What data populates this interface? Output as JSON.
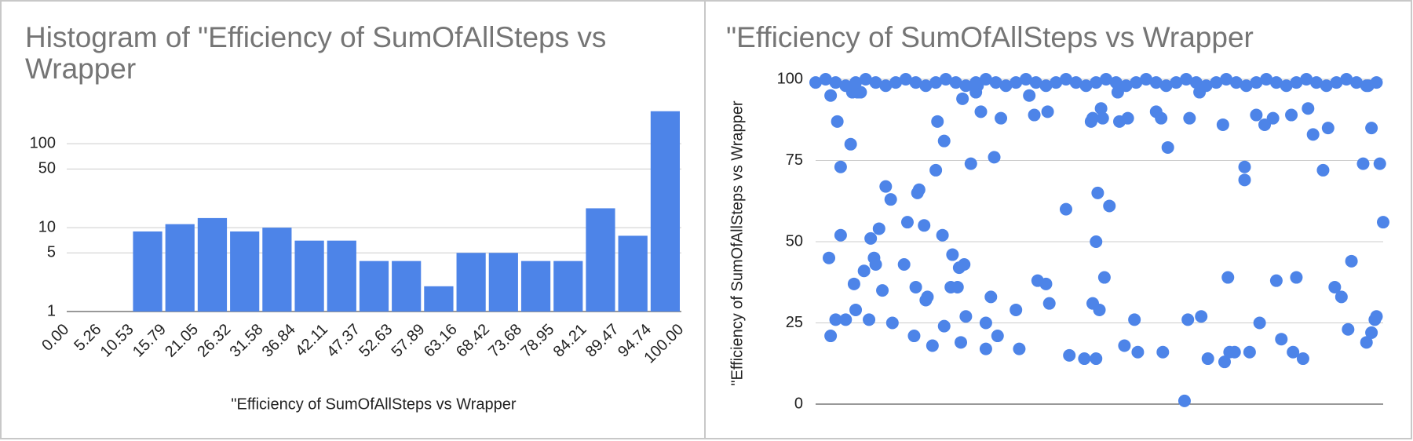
{
  "chart_data": [
    {
      "type": "histogram",
      "title": "Histogram of \"Efficiency of SumOfAllSteps vs Wrapper",
      "x_label": "\"Efficiency of SumOfAllSteps vs Wrapper",
      "bins": [
        {
          "value": 0,
          "label": "0.00"
        },
        5.26,
        10.53,
        15.79,
        21.05,
        26.32,
        31.58,
        36.84,
        42.11,
        47.37,
        52.63,
        57.89,
        63.16,
        68.42,
        73.68,
        78.95,
        84.21,
        89.47,
        94.74,
        {
          "value": 100,
          "label": "100.00"
        }
      ],
      "counts": [
        0,
        0,
        9,
        11,
        13,
        9,
        10,
        7,
        7,
        4,
        4,
        2,
        5,
        5,
        4,
        4,
        17,
        8,
        244
      ],
      "color": "#4d84e8",
      "xlim": [
        0,
        100
      ],
      "ylim": [
        1,
        350
      ],
      "yticks": [
        1,
        5,
        10,
        50,
        100
      ],
      "log_y": true,
      "grid": true
    },
    {
      "type": "scatter",
      "title": "\"Efficiency of SumOfAllSteps vs Wrapper",
      "y_label": "\"Efficiency of SumOfAllSteps vs Wrapper",
      "x": [
        8,
        9,
        9,
        12,
        13,
        15,
        15,
        18,
        21,
        22,
        23,
        24,
        25,
        27,
        29,
        32,
        33,
        35,
        36,
        38,
        40,
        42,
        45,
        46,
        53,
        55,
        59,
        60,
        61,
        62,
        65,
        66,
        67,
        70,
        72,
        73,
        76,
        77,
        77,
        81,
        82,
        85,
        86,
        87,
        88,
        89,
        90,
        93,
        96,
        97,
        99,
        102,
        102,
        105,
        107,
        109,
        111,
        120,
        122,
        128,
        131,
        133,
        138,
        139,
        140,
        150,
        152,
        161,
        165,
        166,
        166,
        168,
        168,
        169,
        170,
        171,
        172,
        173,
        176,
        181,
        182,
        185,
        187,
        191,
        193,
        204,
        207,
        208,
        211,
        221,
        223,
        224,
        230,
        231,
        235,
        244,
        245,
        247,
        248,
        251,
        257,
        257,
        260,
        264,
        266,
        269,
        274,
        276,
        279,
        285,
        286,
        288,
        292,
        295,
        298,
        304,
        307,
        311,
        315,
        319,
        321,
        328,
        330,
        331,
        333,
        333,
        335,
        336,
        338,
        340,
        0,
        6,
        12,
        18,
        24,
        30,
        36,
        42,
        48,
        54,
        60,
        66,
        72,
        78,
        84,
        90,
        96,
        102,
        108,
        114,
        120,
        126,
        132,
        138,
        144,
        150,
        156,
        162,
        168,
        174,
        180,
        186,
        192,
        198,
        204,
        210,
        216,
        222,
        228,
        234,
        240,
        246,
        252,
        258,
        264,
        270,
        276,
        282,
        288,
        294,
        300,
        306,
        312,
        318,
        324,
        330,
        336
      ],
      "values": [
        45,
        21,
        95,
        26,
        87,
        52,
        73,
        26,
        80,
        96,
        37,
        29,
        96,
        96,
        41,
        26,
        51,
        45,
        43,
        54,
        35,
        67,
        63,
        25,
        43,
        56,
        21,
        36,
        65,
        66,
        55,
        32,
        33,
        18,
        72,
        87,
        52,
        81,
        24,
        36,
        46,
        36,
        42,
        19,
        94,
        43,
        27,
        74,
        96,
        98,
        90,
        25,
        17,
        33,
        76,
        21,
        88,
        29,
        17,
        95,
        89,
        38,
        37,
        90,
        31,
        60,
        15,
        14,
        87,
        88,
        31,
        14,
        50,
        65,
        29,
        91,
        88,
        39,
        61,
        96,
        87,
        18,
        88,
        26,
        16,
        90,
        88,
        16,
        79,
        1,
        26,
        88,
        96,
        27,
        14,
        86,
        13,
        39,
        16,
        16,
        73,
        69,
        16,
        89,
        25,
        86,
        88,
        38,
        20,
        89,
        16,
        39,
        14,
        91,
        83,
        72,
        85,
        36,
        33,
        23,
        44,
        74,
        19,
        98,
        85,
        22,
        26,
        27,
        74,
        56,
        99,
        100,
        99,
        98,
        99,
        100,
        99,
        98,
        99,
        100,
        99,
        98,
        99,
        100,
        99,
        98,
        99,
        100,
        99,
        98,
        99,
        100,
        99,
        98,
        99,
        100,
        99,
        98,
        99,
        100,
        99,
        98,
        99,
        100,
        99,
        98,
        99,
        100,
        99,
        98,
        99,
        100,
        99,
        98,
        99,
        100,
        99,
        98,
        99,
        100,
        99,
        98,
        99,
        100,
        99,
        98,
        99
      ],
      "color": "#4d84e8",
      "xlim": [
        0,
        340
      ],
      "ylim": [
        0,
        100
      ],
      "yticks": [
        0,
        25,
        50,
        75,
        100
      ],
      "grid": true
    }
  ]
}
